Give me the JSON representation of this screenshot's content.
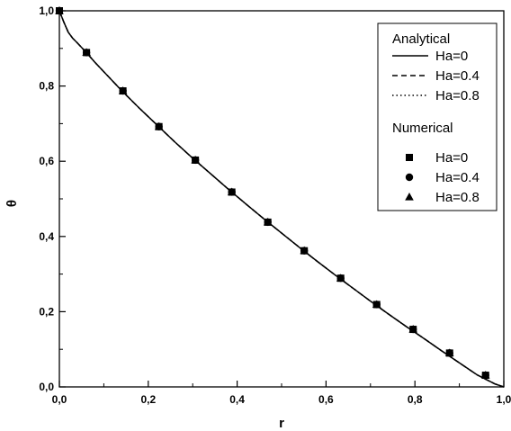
{
  "chart_data": {
    "type": "line",
    "xlabel": "r",
    "ylabel": "θ",
    "xlim": [
      0.0,
      1.0
    ],
    "ylim": [
      0.0,
      1.0
    ],
    "x_ticks": [
      0.0,
      0.2,
      0.4,
      0.6,
      0.8,
      1.0
    ],
    "y_ticks": [
      0.0,
      0.2,
      0.4,
      0.6,
      0.8,
      1.0
    ],
    "x_tick_labels": [
      "0,0",
      "0,2",
      "0,4",
      "0,6",
      "0,8",
      "1,0"
    ],
    "y_tick_labels": [
      "0,0",
      "0,2",
      "0,4",
      "0,6",
      "0,8",
      "1,0"
    ],
    "grid": false,
    "legend_position": "top-right",
    "legend": {
      "analytical_heading": "Analytical",
      "numerical_heading": "Numerical"
    },
    "analytical": [
      {
        "name": "Ha=0",
        "line": "solid",
        "x": [
          0.0,
          0.005,
          0.01,
          0.02,
          0.03,
          0.04,
          0.06,
          0.08,
          0.1,
          0.14,
          0.18,
          0.22,
          0.26,
          0.3,
          0.34,
          0.38,
          0.42,
          0.46,
          0.5,
          0.54,
          0.58,
          0.62,
          0.66,
          0.7,
          0.74,
          0.78,
          0.82,
          0.86,
          0.9,
          0.94,
          0.98,
          1.0
        ],
        "y": [
          1.0,
          0.985,
          0.97,
          0.943,
          0.927,
          0.915,
          0.89,
          0.863,
          0.838,
          0.788,
          0.741,
          0.696,
          0.651,
          0.608,
          0.567,
          0.526,
          0.486,
          0.447,
          0.409,
          0.371,
          0.334,
          0.298,
          0.263,
          0.228,
          0.194,
          0.161,
          0.129,
          0.096,
          0.064,
          0.032,
          0.008,
          0.0
        ]
      },
      {
        "name": "Ha=0.4",
        "line": "dashed",
        "x": [
          0.0,
          0.005,
          0.01,
          0.02,
          0.03,
          0.04,
          0.06,
          0.08,
          0.1,
          0.14,
          0.18,
          0.22,
          0.26,
          0.3,
          0.34,
          0.38,
          0.42,
          0.46,
          0.5,
          0.54,
          0.58,
          0.62,
          0.66,
          0.7,
          0.74,
          0.78,
          0.82,
          0.86,
          0.9,
          0.94,
          0.98,
          1.0
        ],
        "y": [
          1.0,
          0.985,
          0.97,
          0.943,
          0.927,
          0.915,
          0.89,
          0.863,
          0.838,
          0.788,
          0.741,
          0.696,
          0.651,
          0.608,
          0.567,
          0.526,
          0.486,
          0.447,
          0.409,
          0.371,
          0.334,
          0.298,
          0.263,
          0.228,
          0.194,
          0.161,
          0.129,
          0.096,
          0.064,
          0.032,
          0.008,
          0.0
        ]
      },
      {
        "name": "Ha=0.8",
        "line": "dotted",
        "x": [
          0.0,
          0.005,
          0.01,
          0.02,
          0.03,
          0.04,
          0.06,
          0.08,
          0.1,
          0.14,
          0.18,
          0.22,
          0.26,
          0.3,
          0.34,
          0.38,
          0.42,
          0.46,
          0.5,
          0.54,
          0.58,
          0.62,
          0.66,
          0.7,
          0.74,
          0.78,
          0.82,
          0.86,
          0.9,
          0.94,
          0.98,
          1.0
        ],
        "y": [
          1.0,
          0.985,
          0.97,
          0.943,
          0.927,
          0.915,
          0.89,
          0.863,
          0.838,
          0.788,
          0.741,
          0.696,
          0.651,
          0.608,
          0.567,
          0.526,
          0.486,
          0.447,
          0.409,
          0.371,
          0.334,
          0.298,
          0.263,
          0.228,
          0.194,
          0.161,
          0.129,
          0.096,
          0.064,
          0.032,
          0.008,
          0.0
        ]
      }
    ],
    "numerical": [
      {
        "name": "Ha=0",
        "marker": "square",
        "x": [
          0.0,
          0.061,
          0.143,
          0.224,
          0.306,
          0.388,
          0.469,
          0.551,
          0.633,
          0.714,
          0.796,
          0.878,
          0.959
        ],
        "y": [
          1.0,
          0.889,
          0.787,
          0.692,
          0.603,
          0.518,
          0.438,
          0.362,
          0.289,
          0.219,
          0.153,
          0.09,
          0.031
        ]
      },
      {
        "name": "Ha=0.4",
        "marker": "circle",
        "x": [
          0.0,
          0.061,
          0.143,
          0.224,
          0.306,
          0.388,
          0.469,
          0.551,
          0.633,
          0.714,
          0.796,
          0.878,
          0.959
        ],
        "y": [
          1.0,
          0.889,
          0.787,
          0.692,
          0.603,
          0.518,
          0.438,
          0.362,
          0.289,
          0.219,
          0.153,
          0.09,
          0.031
        ]
      },
      {
        "name": "Ha=0.8",
        "marker": "triangle",
        "x": [
          0.0,
          0.061,
          0.143,
          0.224,
          0.306,
          0.388,
          0.469,
          0.551,
          0.633,
          0.714,
          0.796,
          0.878,
          0.959
        ],
        "y": [
          1.0,
          0.889,
          0.787,
          0.692,
          0.603,
          0.518,
          0.438,
          0.362,
          0.289,
          0.219,
          0.153,
          0.09,
          0.031
        ]
      }
    ],
    "colors": {
      "line": "#000000",
      "background": "#ffffff"
    }
  }
}
